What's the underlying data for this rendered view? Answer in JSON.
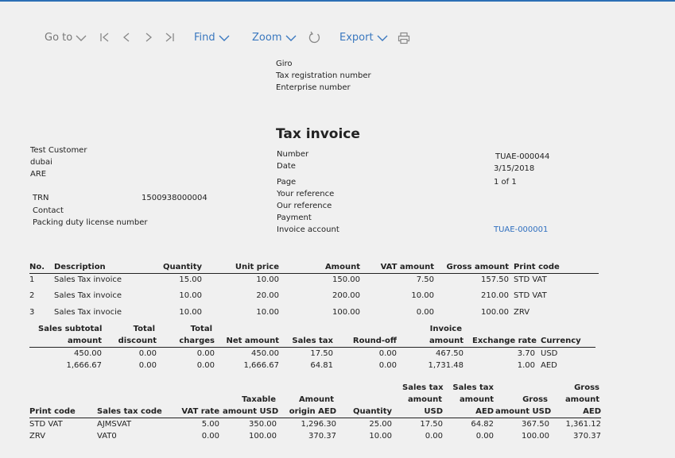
{
  "toolbar": {
    "goto": "Go to",
    "find": "Find",
    "zoom": "Zoom",
    "export": "Export"
  },
  "bank": {
    "giro": "Giro",
    "tax_reg": "Tax registration number",
    "enterprise": "Enterprise number"
  },
  "title": "Tax invoice",
  "customer": {
    "name": "Test Customer",
    "city": "dubai",
    "country": "ARE",
    "trn_label": "TRN",
    "trn_value": "1500938000004",
    "contact_label": "Contact",
    "packing_label": "Packing duty license number"
  },
  "invoice_info": {
    "number_label": "Number",
    "number_value": "TUAE-000044",
    "date_label": "Date",
    "date_value": "3/15/2018",
    "page_label": "Page",
    "page_value": "1 of 1",
    "your_ref_label": "Your reference",
    "our_ref_label": "Our reference",
    "payment_label": "Payment",
    "account_label": "Invoice account",
    "account_value": "TUAE-000001"
  },
  "lines": {
    "headers": [
      "No.",
      "Description",
      "Quantity",
      "Unit price",
      "Amount",
      "VAT amount",
      "Gross amount",
      "Print code"
    ],
    "rows": [
      [
        "1",
        "Sales Tax invoice",
        "15.00",
        "10.00",
        "150.00",
        "7.50",
        "157.50",
        "STD VAT"
      ],
      [
        "2",
        "Sales Tax invoice",
        "10.00",
        "20.00",
        "200.00",
        "10.00",
        "210.00",
        "STD VAT"
      ],
      [
        "3",
        "Sales Tax invocie",
        "10.00",
        "10.00",
        "100.00",
        "0.00",
        "100.00",
        "ZRV"
      ]
    ]
  },
  "totals": {
    "h1": [
      "Sales subtotal",
      "Total",
      "Total",
      "",
      "",
      "",
      "Invoice",
      "",
      ""
    ],
    "h2": [
      "amount",
      "discount",
      "charges",
      "Net amount",
      "Sales tax",
      "Round-off",
      "amount",
      "Exchange rate",
      "Currency"
    ],
    "rows": [
      [
        "450.00",
        "0.00",
        "0.00",
        "450.00",
        "17.50",
        "0.00",
        "467.50",
        "3.70",
        "USD"
      ],
      [
        "1,666.67",
        "0.00",
        "0.00",
        "1,666.67",
        "64.81",
        "0.00",
        "1,731.48",
        "1.00",
        "AED"
      ]
    ]
  },
  "tax": {
    "h1": [
      "",
      "",
      "",
      "",
      "",
      "",
      "Sales tax",
      "Sales tax",
      "",
      "Gross"
    ],
    "h2": [
      "",
      "",
      "",
      "Taxable",
      "Amount",
      "",
      "amount",
      "amount",
      "Gross",
      "amount"
    ],
    "h3": [
      "Print code",
      "Sales tax code",
      "VAT rate",
      "amount USD",
      "origin AED",
      "Quantity",
      "USD",
      "AED",
      "amount USD",
      "AED"
    ],
    "rows": [
      [
        "STD VAT",
        "AJMSVAT",
        "5.00",
        "350.00",
        "1,296.30",
        "25.00",
        "17.50",
        "64.82",
        "367.50",
        "1,361.12"
      ],
      [
        "ZRV",
        "VAT0",
        "0.00",
        "100.00",
        "370.37",
        "10.00",
        "0.00",
        "0.00",
        "100.00",
        "370.37"
      ]
    ]
  }
}
